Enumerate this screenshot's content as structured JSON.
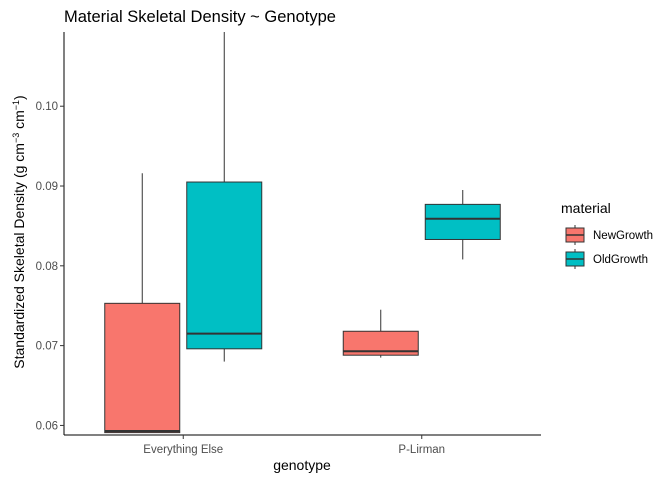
{
  "chart_data": {
    "type": "boxplot",
    "title": "Material Skeletal Density ~ Genotype",
    "xlabel": "genotype",
    "ylabel_main": "Standardized Skeletal Density (g cm",
    "ylabel_sup1": "−3",
    "ylabel_mid": " cm",
    "ylabel_sup2": "−1",
    "ylabel_end": ")",
    "categories": [
      "Everything Else",
      "P-Lirman"
    ],
    "ylim": [
      0.0588,
      0.1093
    ],
    "yticks": [
      0.06,
      0.07,
      0.08,
      0.09,
      0.1
    ],
    "ytick_labels": [
      "0.06",
      "0.07",
      "0.08",
      "0.09",
      "0.10"
    ],
    "legend": {
      "title": "material",
      "position": "right",
      "entries": [
        "NewGrowth",
        "OldGrowth"
      ]
    },
    "series": [
      {
        "name": "NewGrowth",
        "color": "#F8766D",
        "boxes": [
          {
            "category": "Everything Else",
            "min": 0.0591,
            "q1": 0.0591,
            "median": 0.0593,
            "q3": 0.0753,
            "max": 0.0916
          },
          {
            "category": "P-Lirman",
            "min": 0.0685,
            "q1": 0.0688,
            "median": 0.0693,
            "q3": 0.0718,
            "max": 0.0745
          }
        ]
      },
      {
        "name": "OldGrowth",
        "color": "#00BFC4",
        "boxes": [
          {
            "category": "Everything Else",
            "min": 0.068,
            "q1": 0.0696,
            "median": 0.0715,
            "q3": 0.0905,
            "max": 0.1093
          },
          {
            "category": "P-Lirman",
            "min": 0.0808,
            "q1": 0.0833,
            "median": 0.0859,
            "q3": 0.0877,
            "max": 0.0895
          }
        ]
      }
    ]
  }
}
